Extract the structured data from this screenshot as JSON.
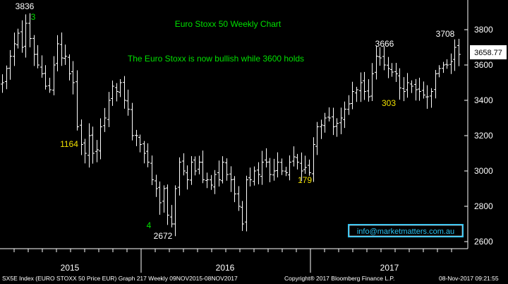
{
  "chart_data": {
    "type": "bar",
    "subtype": "ohlc-weekly",
    "title": "Euro Stoxx 50 Weekly Chart",
    "subtitle": "The Euro Stoxx is now bullish while 3600 holds",
    "xlabel": "",
    "ylabel": "",
    "x_tick_labels": [
      "2015",
      "2016",
      "2017"
    ],
    "y_ticks": [
      2600,
      2800,
      3000,
      3200,
      3400,
      3600,
      3800
    ],
    "ylim": [
      2560,
      3960
    ],
    "grid": false,
    "last_value": "3658.77",
    "closes": [
      3500,
      3580,
      3650,
      3720,
      3780,
      3700,
      3836,
      3750,
      3660,
      3600,
      3550,
      3480,
      3460,
      3600,
      3720,
      3640,
      3650,
      3550,
      3500,
      3250,
      3150,
      3100,
      3200,
      3100,
      3120,
      3250,
      3300,
      3400,
      3480,
      3450,
      3500,
      3400,
      3350,
      3200,
      3200,
      3150,
      3100,
      3050,
      2950,
      2900,
      2820,
      2900,
      2750,
      2700,
      2900,
      3050,
      3000,
      2950,
      3050,
      3000,
      3050,
      2950,
      2950,
      2920,
      2980,
      2950,
      3050,
      2980,
      2950,
      2870,
      2800,
      2700,
      2950,
      2950,
      3000,
      2980,
      3050,
      3050,
      2980,
      3000,
      3050,
      3000,
      2990,
      3050,
      3080,
      3050,
      3000,
      3020,
      2990,
      3150,
      3250,
      3260,
      3300,
      3300,
      3250,
      3270,
      3300,
      3350,
      3380,
      3450,
      3460,
      3500,
      3450,
      3420,
      3550,
      3650,
      3640,
      3600,
      3580,
      3560,
      3550,
      3470,
      3450,
      3500,
      3480,
      3460,
      3450,
      3430,
      3420,
      3450,
      3550,
      3580,
      3600,
      3600,
      3620,
      3700,
      3660
    ],
    "annotations": {
      "high_2015": "3836",
      "count_3": "3",
      "low_1164": "1164",
      "count_4": "4",
      "low_2672": "2672",
      "low_179": "179",
      "high_3666": "3666",
      "low_303": "303",
      "high_3708": "3708"
    },
    "colors": {
      "background": "#000000",
      "bars": "#ffffff",
      "title_green": "#00e000",
      "label_yellow": "#f0e000",
      "label_white": "#ffffff",
      "badge": "#2ac0f0"
    }
  },
  "website": "info@marketmatters.com.au",
  "footer": {
    "left": "SX5E Index (EURO STOXX 50 Price EUR) Graph 217  Weekly 09NOV2015-08NOV2017",
    "center": "Copyright® 2017 Bloomberg Finance L.P.",
    "right": "08-Nov-2017 09:21:55"
  }
}
